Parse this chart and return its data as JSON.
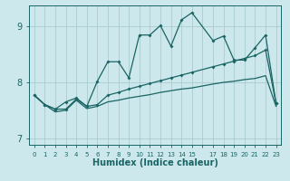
{
  "xlabel": "Humidex (Indice chaleur)",
  "background_color": "#cce8ec",
  "grid_color": "#aaccce",
  "line_color": "#1a6464",
  "xlim": [
    -0.5,
    23.5
  ],
  "ylim": [
    6.88,
    9.38
  ],
  "yticks": [
    7,
    8,
    9
  ],
  "xtick_labels": [
    "0",
    "1",
    "2",
    "3",
    "4",
    "5",
    "6",
    "7",
    "8",
    "9",
    "10",
    "11",
    "12",
    "13",
    "14",
    "15",
    "",
    "17",
    "18",
    "19",
    "20",
    "21",
    "22",
    "23"
  ],
  "line1_x": [
    0,
    1,
    2,
    3,
    4,
    5,
    6,
    7,
    8,
    9,
    10,
    11,
    12,
    13,
    14,
    15,
    17,
    18,
    19,
    20,
    21,
    22,
    23
  ],
  "line1_y": [
    7.77,
    7.6,
    7.52,
    7.65,
    7.72,
    7.57,
    8.02,
    8.37,
    8.37,
    8.08,
    8.85,
    8.85,
    9.02,
    8.65,
    9.12,
    9.25,
    8.75,
    8.83,
    8.4,
    8.4,
    8.62,
    8.85,
    7.62
  ],
  "line2_x": [
    0,
    1,
    2,
    3,
    4,
    5,
    6,
    7,
    8,
    9,
    10,
    11,
    12,
    13,
    14,
    15,
    17,
    18,
    19,
    20,
    21,
    22,
    23
  ],
  "line2_y": [
    7.77,
    7.6,
    7.52,
    7.52,
    7.7,
    7.57,
    7.6,
    7.77,
    7.82,
    7.88,
    7.93,
    7.98,
    8.03,
    8.08,
    8.13,
    8.18,
    8.28,
    8.33,
    8.38,
    8.43,
    8.48,
    8.58,
    7.62
  ],
  "line3_x": [
    0,
    1,
    2,
    3,
    4,
    5,
    6,
    7,
    8,
    9,
    10,
    11,
    12,
    13,
    14,
    15,
    17,
    18,
    19,
    20,
    21,
    22,
    23
  ],
  "line3_y": [
    7.77,
    7.6,
    7.47,
    7.5,
    7.68,
    7.53,
    7.57,
    7.65,
    7.68,
    7.72,
    7.75,
    7.78,
    7.82,
    7.85,
    7.88,
    7.9,
    7.97,
    8.0,
    8.02,
    8.05,
    8.07,
    8.12,
    7.57
  ]
}
